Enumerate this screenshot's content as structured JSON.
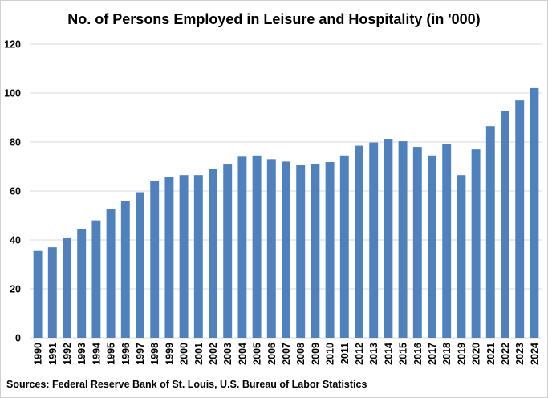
{
  "chart_data": {
    "type": "bar",
    "title": "No. of Persons Employed in Leisure and Hospitality (in '000)",
    "xlabel": "",
    "ylabel": "",
    "ylim": [
      0,
      120
    ],
    "yticks": [
      0,
      20,
      40,
      60,
      80,
      100,
      120
    ],
    "grid": true,
    "legend": "none",
    "bar_color": "#4f81bd",
    "categories": [
      "1990",
      "1991",
      "1992",
      "1993",
      "1994",
      "1995",
      "1996",
      "1997",
      "1998",
      "1999",
      "2000",
      "2001",
      "2002",
      "2003",
      "2004",
      "2005",
      "2006",
      "2007",
      "2008",
      "2009",
      "2010",
      "2011",
      "2012",
      "2013",
      "2014",
      "2015",
      "2016",
      "2017",
      "2018",
      "2019",
      "2020",
      "2021",
      "2022",
      "2023",
      "2024"
    ],
    "values": [
      35.5,
      37,
      41,
      44.5,
      48,
      52.5,
      56,
      59.5,
      64,
      65.8,
      66.5,
      66.5,
      69,
      70.8,
      74,
      74.5,
      73,
      72,
      70.5,
      71,
      71.8,
      74.5,
      78.5,
      79.8,
      81.3,
      80.3,
      78,
      74.5,
      79.3,
      66.5,
      77,
      86.5,
      92.8,
      97,
      102
    ]
  },
  "source": "Sources: Federal Reserve Bank of St. Louis, U.S. Bureau of Labor Statistics"
}
